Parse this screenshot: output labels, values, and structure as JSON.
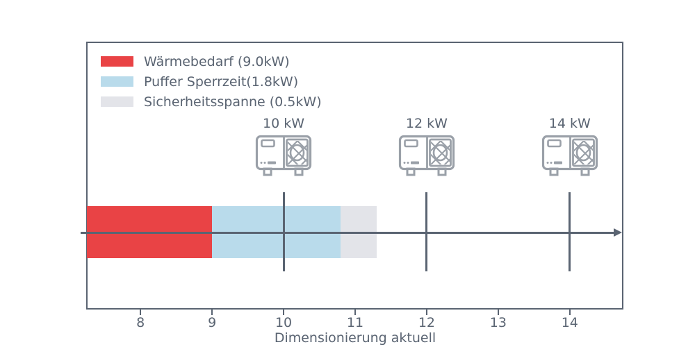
{
  "colors": {
    "frame": "#5a6472",
    "text": "#5a6472",
    "axis_line": "#5a6472",
    "icon": "#9aa0a8",
    "background": "#ffffff",
    "waermebedarf_red": "#e94345",
    "puffer_blue": "#b9dbeb",
    "sicherheit_gray": "#e3e4e9"
  },
  "chart_data": {
    "type": "bar",
    "orientation": "horizontal",
    "title": "",
    "xlabel": "Dimensionierung aktuell",
    "ylabel": "",
    "xlim": [
      7.25,
      14.75
    ],
    "xticks": [
      "8",
      "9",
      "10",
      "11",
      "12",
      "13",
      "14"
    ],
    "xtick_values": [
      8,
      9,
      10,
      11,
      12,
      13,
      14
    ],
    "grid": false,
    "legend_position": "upper left",
    "segments": [
      {
        "name": "waermebedarf",
        "label": "Wärmebedarf (9.0kW)",
        "value_kw": 9.0,
        "start": 0.0,
        "end": 9.0,
        "color": "#e94345"
      },
      {
        "name": "puffer-sperrzeit",
        "label": "Puffer Sperrzeit(1.8kW)",
        "value_kw": 1.8,
        "start": 9.0,
        "end": 10.8,
        "color": "#b9dbeb"
      },
      {
        "name": "sicherheitsspanne",
        "label": "Sicherheitsspanne (0.5kW)",
        "value_kw": 0.5,
        "start": 10.8,
        "end": 11.3,
        "color": "#e3e4e9"
      }
    ],
    "markers": [
      {
        "label": "10 kW",
        "x": 10,
        "icon": "heat-pump-icon"
      },
      {
        "label": "12 kW",
        "x": 12,
        "icon": "heat-pump-icon"
      },
      {
        "label": "14 kW",
        "x": 14,
        "icon": "heat-pump-icon"
      }
    ],
    "annotations": {
      "axis_arrow_direction": "right"
    }
  }
}
